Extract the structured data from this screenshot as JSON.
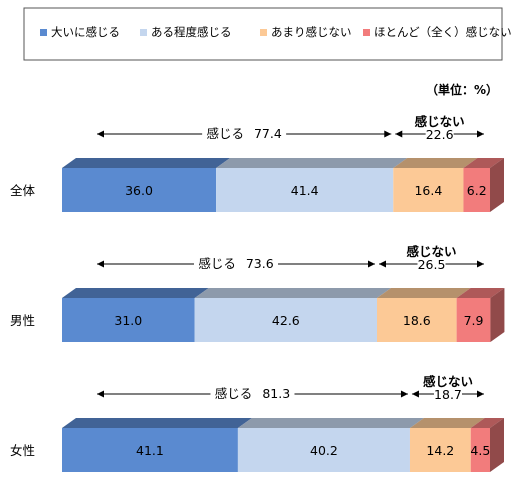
{
  "chart_data": {
    "type": "bar",
    "orientation": "horizontal",
    "stacked": true,
    "percent_stacked": true,
    "unit_note": "（単位：%）",
    "legend_position": "top",
    "categories": [
      "全体",
      "男性",
      "女性"
    ],
    "series": [
      {
        "name": "大いに感じる",
        "values": [
          36.0,
          31.0,
          41.1
        ],
        "labels": [
          "36.0",
          "31.0",
          "41.1"
        ],
        "color": "#5a8ad0"
      },
      {
        "name": "ある程度感じる",
        "values": [
          41.4,
          42.6,
          40.2
        ],
        "labels": [
          "41.4",
          "42.6",
          "40.2"
        ],
        "color": "#c4d6ee"
      },
      {
        "name": "あまり感じない",
        "values": [
          16.4,
          18.6,
          14.2
        ],
        "labels": [
          "16.4",
          "18.6",
          "14.2"
        ],
        "color": "#fcc996"
      },
      {
        "name": "ほとんど（全く）感じない",
        "values": [
          6.2,
          7.9,
          4.5
        ],
        "labels": [
          "6.2",
          "7.9",
          "4.5"
        ],
        "color": "#f27c7c"
      }
    ],
    "annotations": [
      {
        "category": "全体",
        "feel_label": "感じる",
        "feel_value": "77.4",
        "notfeel_label": "感じない",
        "notfeel_value": "22.6"
      },
      {
        "category": "男性",
        "feel_label": "感じる",
        "feel_value": "73.6",
        "notfeel_label": "感じない",
        "notfeel_value": "26.5"
      },
      {
        "category": "女性",
        "feel_label": "感じる",
        "feel_value": "81.3",
        "notfeel_label": "感じない",
        "notfeel_value": "18.7"
      }
    ]
  }
}
